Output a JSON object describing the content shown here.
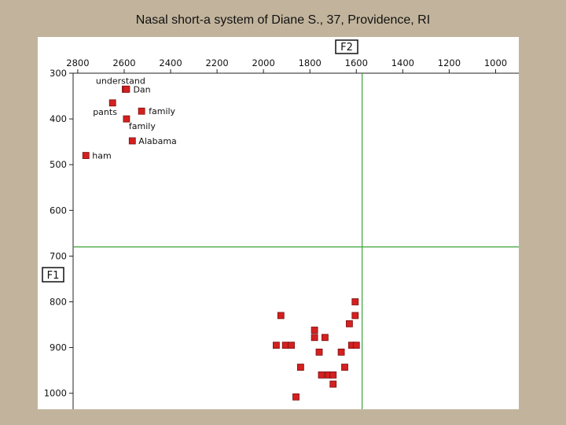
{
  "slide": {
    "title": "Nasal short-a system of Diane S., 37, Providence, RI"
  },
  "chart_data": {
    "type": "scatter",
    "title": "",
    "xlabel": "F2",
    "ylabel": "F1",
    "x_reversed": true,
    "y_reversed": true,
    "xlim": [
      2820,
      900
    ],
    "ylim": [
      300,
      1035
    ],
    "x_ticks": [
      2800,
      2600,
      2400,
      2200,
      2000,
      1800,
      1600,
      1400,
      1200,
      1000
    ],
    "y_ticks": [
      300,
      400,
      500,
      600,
      700,
      800,
      900,
      1000
    ],
    "grid": false,
    "reference_lines": {
      "x": 1575,
      "y": 680,
      "color": "#3aa33a"
    },
    "marker_color": "#d42020",
    "points": [
      {
        "x": 2595,
        "y": 335,
        "label": "Dan"
      },
      {
        "x": 2590,
        "y": 335,
        "label": "understand"
      },
      {
        "x": 2650,
        "y": 365,
        "label": "pants"
      },
      {
        "x": 2525,
        "y": 383,
        "label": "family"
      },
      {
        "x": 2590,
        "y": 400,
        "label": "family"
      },
      {
        "x": 2565,
        "y": 448,
        "label": "Alabama"
      },
      {
        "x": 2765,
        "y": 480,
        "label": "ham"
      },
      {
        "x": 1605,
        "y": 800,
        "label": ""
      },
      {
        "x": 1925,
        "y": 830,
        "label": ""
      },
      {
        "x": 1605,
        "y": 830,
        "label": ""
      },
      {
        "x": 1630,
        "y": 848,
        "label": ""
      },
      {
        "x": 1780,
        "y": 862,
        "label": ""
      },
      {
        "x": 1780,
        "y": 878,
        "label": ""
      },
      {
        "x": 1735,
        "y": 878,
        "label": ""
      },
      {
        "x": 1945,
        "y": 895,
        "label": ""
      },
      {
        "x": 1905,
        "y": 895,
        "label": ""
      },
      {
        "x": 1880,
        "y": 895,
        "label": ""
      },
      {
        "x": 1620,
        "y": 895,
        "label": ""
      },
      {
        "x": 1600,
        "y": 895,
        "label": ""
      },
      {
        "x": 1760,
        "y": 910,
        "label": ""
      },
      {
        "x": 1665,
        "y": 910,
        "label": ""
      },
      {
        "x": 1840,
        "y": 943,
        "label": ""
      },
      {
        "x": 1650,
        "y": 943,
        "label": ""
      },
      {
        "x": 1750,
        "y": 960,
        "label": ""
      },
      {
        "x": 1720,
        "y": 960,
        "label": ""
      },
      {
        "x": 1700,
        "y": 960,
        "label": ""
      },
      {
        "x": 1700,
        "y": 980,
        "label": ""
      },
      {
        "x": 1860,
        "y": 1008,
        "label": ""
      }
    ]
  }
}
